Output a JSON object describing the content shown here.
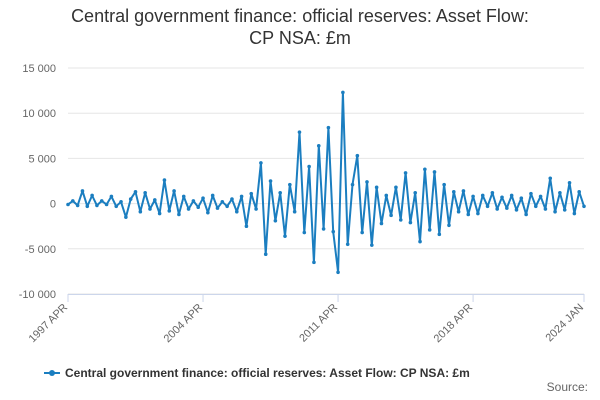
{
  "chart_data": {
    "type": "line",
    "title_lines": [
      "Central government finance: official reserves: Asset Flow:",
      "CP NSA: £m"
    ],
    "xlabel": "",
    "ylabel": "",
    "ylim": [
      -10000,
      15000
    ],
    "y_ticks": [
      15000,
      10000,
      5000,
      0,
      -5000,
      -10000
    ],
    "y_tick_labels": [
      "15 000",
      "10 000",
      "5 000",
      "0",
      "-5 000",
      "-10 000"
    ],
    "x_tick_labels": [
      "1997 APR",
      "2004 APR",
      "2011 APR",
      "2018 APR",
      "2024 JAN"
    ],
    "x_tick_years": [
      1997.25,
      2004.25,
      2011.25,
      2018.25,
      2024.0
    ],
    "xlim": [
      1997.25,
      2024.0
    ],
    "grid": true,
    "legend_position": "bottom",
    "series_color": "#1b7ec0",
    "series": [
      {
        "name": "Central government finance: official reserves: Asset Flow: CP NSA: £m",
        "x": [
          1997.25,
          1997.5,
          1997.75,
          1998.0,
          1998.25,
          1998.5,
          1998.75,
          1999.0,
          1999.25,
          1999.5,
          1999.75,
          2000.0,
          2000.25,
          2000.5,
          2000.75,
          2001.0,
          2001.25,
          2001.5,
          2001.75,
          2002.0,
          2002.25,
          2002.5,
          2002.75,
          2003.0,
          2003.25,
          2003.5,
          2003.75,
          2004.0,
          2004.25,
          2004.5,
          2004.75,
          2005.0,
          2005.25,
          2005.5,
          2005.75,
          2006.0,
          2006.25,
          2006.5,
          2006.75,
          2007.0,
          2007.25,
          2007.5,
          2007.75,
          2008.0,
          2008.25,
          2008.5,
          2008.75,
          2009.0,
          2009.25,
          2009.5,
          2009.75,
          2010.0,
          2010.25,
          2010.5,
          2010.75,
          2011.0,
          2011.25,
          2011.5,
          2011.75,
          2012.0,
          2012.25,
          2012.5,
          2012.75,
          2013.0,
          2013.25,
          2013.5,
          2013.75,
          2014.0,
          2014.25,
          2014.5,
          2014.75,
          2015.0,
          2015.25,
          2015.5,
          2015.75,
          2016.0,
          2016.25,
          2016.5,
          2016.75,
          2017.0,
          2017.25,
          2017.5,
          2017.75,
          2018.0,
          2018.25,
          2018.5,
          2018.75,
          2019.0,
          2019.25,
          2019.5,
          2019.75,
          2020.0,
          2020.25,
          2020.5,
          2020.75,
          2021.0,
          2021.25,
          2021.5,
          2021.75,
          2022.0,
          2022.25,
          2022.5,
          2022.75,
          2023.0,
          2023.25,
          2023.5,
          2023.75,
          2024.0
        ],
        "values": [
          -100,
          300,
          -200,
          1400,
          -300,
          900,
          -200,
          300,
          -100,
          800,
          -300,
          200,
          -1500,
          500,
          1300,
          -900,
          1200,
          -600,
          400,
          -1100,
          2600,
          -800,
          1400,
          -1200,
          800,
          -600,
          300,
          -400,
          600,
          -1000,
          900,
          -500,
          200,
          -300,
          500,
          -900,
          800,
          -2500,
          1100,
          -600,
          4500,
          -5600,
          2500,
          -1900,
          1200,
          -3600,
          2100,
          -900,
          7900,
          -3200,
          4100,
          -6500,
          6400,
          -2800,
          8400,
          -3100,
          -7600,
          12300,
          -4500,
          2100,
          5300,
          -3200,
          2400,
          -4600,
          1800,
          -2200,
          900,
          -1300,
          1800,
          -1800,
          3400,
          -2100,
          1200,
          -4200,
          3800,
          -2900,
          3500,
          -3400,
          2100,
          -2400,
          1300,
          -900,
          1400,
          -1200,
          800,
          -1100,
          900,
          -300,
          1200,
          -600,
          700,
          -500,
          900,
          -700,
          600,
          -1200,
          1100,
          -300,
          800,
          -600,
          2800,
          -900,
          1200,
          -700,
          2300,
          -1100,
          1300,
          -300
        ]
      }
    ]
  },
  "source_label": "Source:"
}
